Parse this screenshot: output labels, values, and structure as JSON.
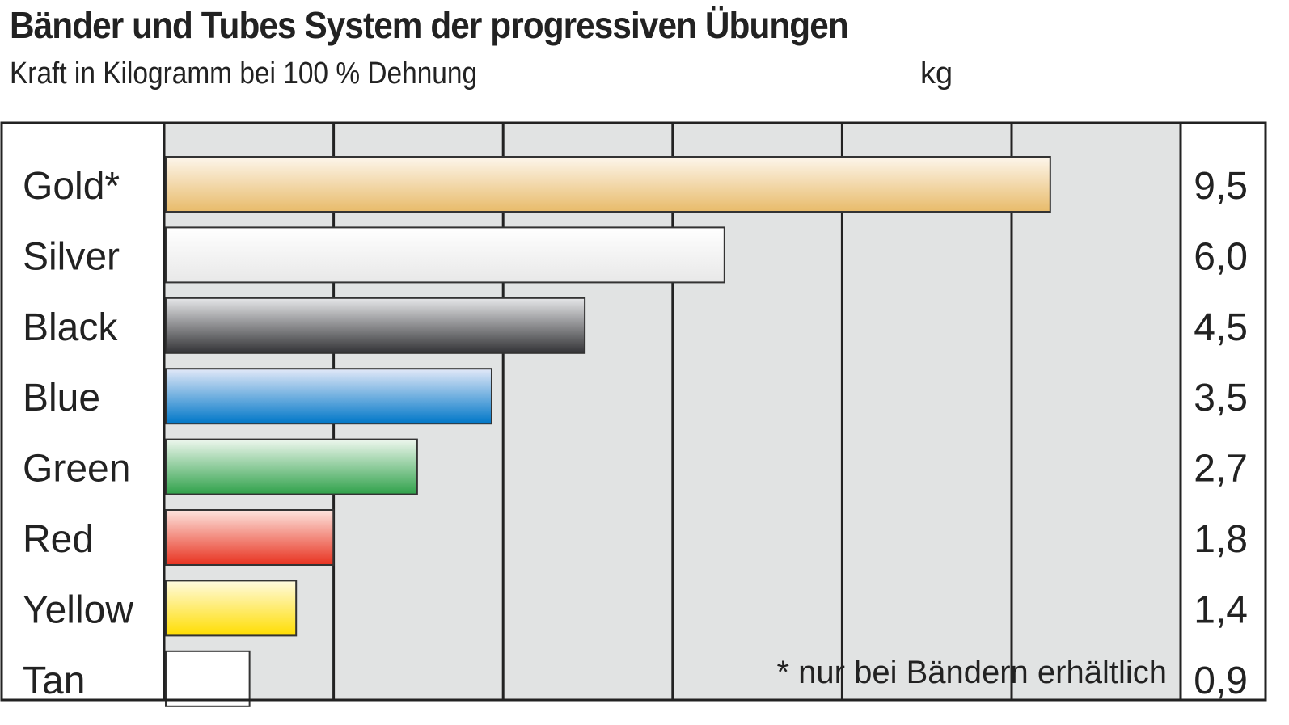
{
  "chart_data": {
    "type": "bar",
    "orientation": "horizontal",
    "title": "Bänder und Tubes System der progressiven Übungen",
    "subtitle": "Kraft in Kilogramm bei 100 % Dehnung",
    "unit": "kg",
    "categories": [
      "Gold*",
      "Silver",
      "Black",
      "Blue",
      "Green",
      "Red",
      "Yellow",
      "Tan"
    ],
    "values": [
      9.5,
      6.0,
      4.5,
      3.5,
      2.7,
      1.8,
      1.4,
      0.9
    ],
    "value_labels": [
      "9,5",
      "6,0",
      "4,5",
      "3,5",
      "2,7",
      "1,8",
      "1,4",
      "0,9"
    ],
    "bar_colors": [
      [
        "#fdf6ec",
        "#e8bb6a"
      ],
      [
        "#ffffff",
        "#e8e8e8"
      ],
      [
        "#e6e7e9",
        "#333336"
      ],
      [
        "#e3e9f8",
        "#0077c8"
      ],
      [
        "#eef7ee",
        "#2fa14a"
      ],
      [
        "#fde4de",
        "#e8321f"
      ],
      [
        "#fffbe0",
        "#ffdd00"
      ],
      [
        "#ffffff",
        "#ffffff"
      ]
    ],
    "xlim": [
      0,
      10.9
    ],
    "grid": true,
    "plot_background": "#e1e3e3",
    "footnote": "* nur bei Bändern erhältlich"
  }
}
